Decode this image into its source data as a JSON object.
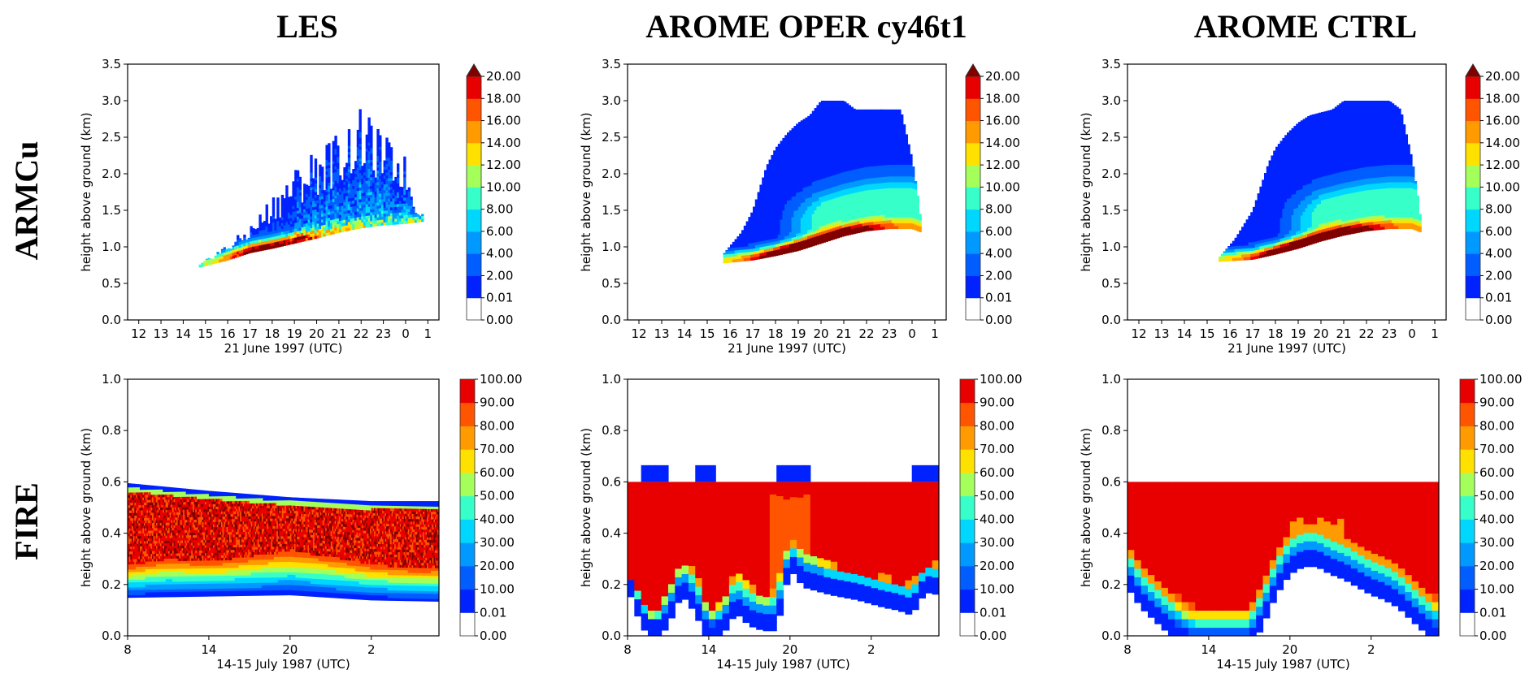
{
  "figure": {
    "column_titles": [
      "LES",
      "AROME OPER cy46t1",
      "AROME CTRL"
    ],
    "row_titles": [
      "ARMCu",
      "FIRE"
    ]
  },
  "chart_data": [
    {
      "type": "heatmap",
      "case": "ARMCu",
      "model": "LES",
      "xlabel": "21 June 1997 (UTC)",
      "ylabel": "height above ground (km)",
      "xticks": [
        "12",
        "13",
        "14",
        "15",
        "16",
        "17",
        "18",
        "19",
        "20",
        "21",
        "22",
        "23",
        "0",
        "1"
      ],
      "xlim": [
        11.5,
        25.5
      ],
      "ylim": [
        0,
        3.5
      ],
      "yticks": [
        "0.0",
        "0.5",
        "1.0",
        "1.5",
        "2.0",
        "2.5",
        "3.0",
        "3.5"
      ],
      "colorbar_levels": [
        "0.00",
        "0.01",
        "2.00",
        "4.00",
        "6.00",
        "8.00",
        "10.00",
        "12.00",
        "14.00",
        "16.00",
        "18.00",
        "20.00"
      ],
      "colorbar_extend": "max",
      "cloud_base_km": [
        [
          14.7,
          0.72
        ],
        [
          16,
          0.82
        ],
        [
          17,
          0.92
        ],
        [
          18,
          0.98
        ],
        [
          19,
          1.05
        ],
        [
          20,
          1.12
        ],
        [
          21,
          1.2
        ],
        [
          22,
          1.26
        ],
        [
          23,
          1.3
        ],
        [
          24,
          1.32
        ],
        [
          24.8,
          1.35
        ]
      ],
      "cloud_top_km": [
        [
          14.7,
          0.75
        ],
        [
          15.5,
          0.95
        ],
        [
          16,
          1.05
        ],
        [
          17,
          1.3
        ],
        [
          17.5,
          1.5
        ],
        [
          18,
          1.75
        ],
        [
          19,
          2.1
        ],
        [
          20,
          2.4
        ],
        [
          21,
          2.6
        ],
        [
          22,
          2.9
        ],
        [
          23,
          2.55
        ],
        [
          24,
          2.25
        ],
        [
          24.4,
          1.6
        ],
        [
          24.8,
          1.45
        ]
      ],
      "core_max_time": 17.8,
      "core_max_value": 20
    },
    {
      "type": "heatmap",
      "case": "ARMCu",
      "model": "AROME OPER cy46t1",
      "xlabel": "21 June 1997 (UTC)",
      "ylabel": "height above ground (km)",
      "xticks": [
        "12",
        "13",
        "14",
        "15",
        "16",
        "17",
        "18",
        "19",
        "20",
        "21",
        "22",
        "23",
        "0",
        "1"
      ],
      "xlim": [
        11.5,
        25.5
      ],
      "ylim": [
        0,
        3.5
      ],
      "yticks": [
        "0.0",
        "0.5",
        "1.0",
        "1.5",
        "2.0",
        "2.5",
        "3.0",
        "3.5"
      ],
      "colorbar_levels": [
        "0.00",
        "0.01",
        "2.00",
        "4.00",
        "6.00",
        "8.00",
        "10.00",
        "12.00",
        "14.00",
        "16.00",
        "18.00",
        "20.00"
      ],
      "colorbar_extend": "max",
      "cloud_base_km": [
        [
          15.7,
          0.78
        ],
        [
          17,
          0.82
        ],
        [
          18,
          0.88
        ],
        [
          19,
          0.95
        ],
        [
          20,
          1.05
        ],
        [
          21,
          1.15
        ],
        [
          22,
          1.22
        ],
        [
          23,
          1.25
        ],
        [
          24,
          1.25
        ],
        [
          24.4,
          1.2
        ]
      ],
      "cloud_top_km": [
        [
          15.7,
          0.9
        ],
        [
          16.5,
          1.2
        ],
        [
          17,
          1.5
        ],
        [
          17.6,
          2.1
        ],
        [
          18,
          2.35
        ],
        [
          18.5,
          2.55
        ],
        [
          19,
          2.7
        ],
        [
          19.5,
          2.8
        ],
        [
          20,
          3.0
        ],
        [
          21,
          3.0
        ],
        [
          21.5,
          2.88
        ],
        [
          23.5,
          2.88
        ],
        [
          24,
          2.2
        ],
        [
          24.3,
          1.6
        ],
        [
          24.4,
          1.3
        ]
      ],
      "core_max_time": 19.5,
      "core_max_value": 20
    },
    {
      "type": "heatmap",
      "case": "ARMCu",
      "model": "AROME CTRL",
      "xlabel": "21 June 1997 (UTC)",
      "ylabel": "height above ground (km)",
      "xticks": [
        "12",
        "13",
        "14",
        "15",
        "16",
        "17",
        "18",
        "19",
        "20",
        "21",
        "22",
        "23",
        "0",
        "1"
      ],
      "xlim": [
        11.5,
        25.5
      ],
      "ylim": [
        0,
        3.5
      ],
      "yticks": [
        "0.0",
        "0.5",
        "1.0",
        "1.5",
        "2.0",
        "2.5",
        "3.0",
        "3.5"
      ],
      "colorbar_levels": [
        "0.00",
        "0.01",
        "2.00",
        "4.00",
        "6.00",
        "8.00",
        "10.00",
        "12.00",
        "14.00",
        "16.00",
        "18.00",
        "20.00"
      ],
      "colorbar_extend": "max",
      "cloud_base_km": [
        [
          15.5,
          0.8
        ],
        [
          17,
          0.83
        ],
        [
          18,
          0.9
        ],
        [
          19,
          0.98
        ],
        [
          20,
          1.08
        ],
        [
          21,
          1.16
        ],
        [
          22,
          1.22
        ],
        [
          23,
          1.25
        ],
        [
          24,
          1.25
        ],
        [
          24.4,
          1.2
        ]
      ],
      "cloud_top_km": [
        [
          15.5,
          0.85
        ],
        [
          16.2,
          1.1
        ],
        [
          17,
          1.5
        ],
        [
          17.7,
          2.15
        ],
        [
          18,
          2.35
        ],
        [
          18.5,
          2.55
        ],
        [
          19,
          2.7
        ],
        [
          19.5,
          2.8
        ],
        [
          20.5,
          2.88
        ],
        [
          21,
          3.0
        ],
        [
          23,
          3.0
        ],
        [
          23.5,
          2.88
        ],
        [
          24,
          2.2
        ],
        [
          24.3,
          1.6
        ],
        [
          24.4,
          1.3
        ]
      ],
      "core_max_time": 19.5,
      "core_max_value": 20
    },
    {
      "type": "heatmap",
      "case": "FIRE",
      "model": "LES",
      "xlabel": "14-15 July 1987 (UTC)",
      "ylabel": "height above ground (km)",
      "xticks": [
        "8",
        "14",
        "20",
        "2"
      ],
      "xtick_hours": [
        8,
        14,
        20,
        26
      ],
      "xlim": [
        8,
        31
      ],
      "ylim": [
        0,
        1.0
      ],
      "yticks": [
        "0.0",
        "0.2",
        "0.4",
        "0.6",
        "0.8",
        "1.0"
      ],
      "colorbar_levels": [
        "0.00",
        "0.01",
        "10.00",
        "20.00",
        "30.00",
        "40.00",
        "50.00",
        "60.00",
        "70.00",
        "80.00",
        "90.00",
        "100.00"
      ],
      "colorbar_extend": "neither",
      "cloud_top_km": [
        [
          8,
          0.595
        ],
        [
          14,
          0.565
        ],
        [
          20,
          0.54
        ],
        [
          26,
          0.525
        ],
        [
          31,
          0.525
        ]
      ],
      "cloud_base_km": [
        [
          8,
          0.15
        ],
        [
          14,
          0.155
        ],
        [
          20,
          0.16
        ],
        [
          26,
          0.14
        ],
        [
          31,
          0.135
        ]
      ],
      "transition_km": [
        [
          8,
          0.255
        ],
        [
          11,
          0.28
        ],
        [
          14,
          0.27
        ],
        [
          17,
          0.29
        ],
        [
          20,
          0.31
        ],
        [
          23,
          0.29
        ],
        [
          26,
          0.26
        ],
        [
          29,
          0.245
        ],
        [
          31,
          0.245
        ]
      ]
    },
    {
      "type": "heatmap",
      "case": "FIRE",
      "model": "AROME OPER cy46t1",
      "xlabel": "14-15 July 1987 (UTC)",
      "ylabel": "height above ground (km)",
      "xticks": [
        "8",
        "14",
        "20",
        "2"
      ],
      "xtick_hours": [
        8,
        14,
        20,
        26
      ],
      "xlim": [
        8,
        31
      ],
      "ylim": [
        0,
        1.0
      ],
      "yticks": [
        "0.0",
        "0.2",
        "0.4",
        "0.6",
        "0.8",
        "1.0"
      ],
      "colorbar_levels": [
        "0.00",
        "0.01",
        "10.00",
        "20.00",
        "30.00",
        "40.00",
        "50.00",
        "60.00",
        "70.00",
        "80.00",
        "90.00",
        "100.00"
      ],
      "colorbar_extend": "neither",
      "cloud_top_km": 0.6,
      "upper_cloud_top_km": 0.665,
      "cloud_base_km": [
        [
          8,
          0.25
        ],
        [
          9,
          0.1
        ],
        [
          10,
          0.03
        ],
        [
          11,
          0.1
        ],
        [
          12,
          0.22
        ],
        [
          13,
          0.15
        ],
        [
          14,
          0.03
        ],
        [
          15,
          0.06
        ],
        [
          16,
          0.15
        ],
        [
          17,
          0.1
        ],
        [
          18,
          0.08
        ],
        [
          19,
          0.08
        ],
        [
          19.5,
          0.2
        ],
        [
          20,
          0.32
        ],
        [
          21,
          0.25
        ],
        [
          23,
          0.22
        ],
        [
          25,
          0.2
        ],
        [
          27,
          0.17
        ],
        [
          28,
          0.16
        ],
        [
          29,
          0.14
        ],
        [
          30,
          0.23
        ],
        [
          31,
          0.22
        ]
      ],
      "transition_km": [
        [
          8,
          0.25
        ],
        [
          9,
          0.15
        ],
        [
          10,
          0.08
        ],
        [
          11,
          0.18
        ],
        [
          12,
          0.3
        ],
        [
          13,
          0.25
        ],
        [
          14,
          0.1
        ],
        [
          15,
          0.13
        ],
        [
          16,
          0.25
        ],
        [
          17,
          0.2
        ],
        [
          18,
          0.15
        ],
        [
          19,
          0.18
        ],
        [
          19.5,
          0.3
        ],
        [
          20,
          0.37
        ],
        [
          21,
          0.33
        ],
        [
          23,
          0.28
        ],
        [
          25,
          0.25
        ],
        [
          27,
          0.23
        ],
        [
          28,
          0.21
        ],
        [
          29,
          0.2
        ],
        [
          30,
          0.28
        ],
        [
          31,
          0.28
        ]
      ]
    },
    {
      "type": "heatmap",
      "case": "FIRE",
      "model": "AROME CTRL",
      "xlabel": "14-15 July 1987 (UTC)",
      "ylabel": "height above ground (km)",
      "xticks": [
        "8",
        "14",
        "20",
        "2"
      ],
      "xtick_hours": [
        8,
        14,
        20,
        26
      ],
      "xlim": [
        8,
        31
      ],
      "ylim": [
        0,
        1.0
      ],
      "yticks": [
        "0.0",
        "0.2",
        "0.4",
        "0.6",
        "0.8",
        "1.0"
      ],
      "colorbar_levels": [
        "0.00",
        "0.01",
        "10.00",
        "20.00",
        "30.00",
        "40.00",
        "50.00",
        "60.00",
        "70.00",
        "80.00",
        "90.00",
        "100.00"
      ],
      "colorbar_extend": "neither",
      "cloud_top_km": 0.6,
      "cloud_base_km": [
        [
          8,
          0.25
        ],
        [
          9,
          0.17
        ],
        [
          10,
          0.12
        ],
        [
          11,
          0.07
        ],
        [
          12,
          0.03
        ],
        [
          13,
          0.0
        ],
        [
          17,
          0.0
        ],
        [
          18,
          0.1
        ],
        [
          19,
          0.22
        ],
        [
          20,
          0.3
        ],
        [
          21,
          0.33
        ],
        [
          22,
          0.33
        ],
        [
          23,
          0.3
        ],
        [
          24,
          0.28
        ],
        [
          25,
          0.25
        ],
        [
          26,
          0.22
        ],
        [
          27,
          0.2
        ],
        [
          28,
          0.17
        ],
        [
          29,
          0.12
        ],
        [
          30,
          0.07
        ],
        [
          31,
          0.03
        ]
      ],
      "clear_hole": [
        [
          21.5,
          0.22
        ],
        [
          22.5,
          0.3
        ]
      ]
    }
  ],
  "colormap": {
    "zero": "#ffffff",
    "levels": [
      "#0022ff",
      "#005dff",
      "#0099ff",
      "#00d7ff",
      "#36ffc9",
      "#a4ff5a",
      "#ffe100",
      "#ff9a00",
      "#ff5400",
      "#e80000"
    ],
    "extend_max": "#800000"
  }
}
